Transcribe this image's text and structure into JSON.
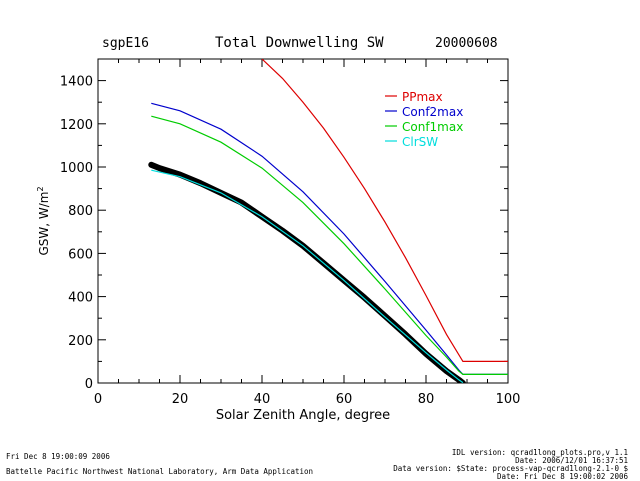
{
  "header": {
    "site": "sgpE16",
    "title": "Total Downwelling SW",
    "date": "20000608"
  },
  "footer": {
    "left_line1": "Fri Dec  8 19:00:09 2006",
    "left_line2": "Battelle Pacific Northwest National Laboratory, Arm Data Application",
    "right_line1": "IDL version: qcrad1long_plots.pro,v 1.1",
    "right_line2": "Date: 2006/12/01 16:37:51",
    "right_line3": "Data version: $State: process-vap-qcrad1long-2.1-0 $",
    "right_line4": "Date: Fri Dec  8 19:00:02 2006"
  },
  "chart_data": {
    "type": "line",
    "title": "Total Downwelling SW",
    "xlabel": "Solar Zenith Angle, degree",
    "ylabel": "GSW, W/m",
    "ylabel_superscript": "2",
    "xlim": [
      0,
      100
    ],
    "ylim": [
      0,
      1500
    ],
    "xticks": [
      0,
      20,
      40,
      60,
      80,
      100
    ],
    "yticks": [
      0,
      200,
      400,
      600,
      800,
      1000,
      1200,
      1400
    ],
    "legend_position": "top-right",
    "series": [
      {
        "name": "PPmax",
        "color": "#dd0000",
        "x": [
          40,
          45,
          50,
          55,
          60,
          65,
          70,
          75,
          80,
          85,
          89,
          90,
          100
        ],
        "y": [
          1500,
          1410,
          1300,
          1180,
          1045,
          900,
          745,
          580,
          405,
          225,
          100,
          100,
          100
        ]
      },
      {
        "name": "Conf2max",
        "color": "#0000cc",
        "x": [
          13,
          20,
          30,
          40,
          50,
          60,
          70,
          80,
          85,
          88,
          89,
          90,
          100
        ],
        "y": [
          1295,
          1260,
          1175,
          1050,
          885,
          690,
          470,
          245,
          130,
          60,
          40,
          40,
          40
        ]
      },
      {
        "name": "Conf1max",
        "color": "#00cc00",
        "x": [
          13,
          20,
          30,
          40,
          50,
          60,
          70,
          80,
          85,
          88,
          89,
          90,
          100
        ],
        "y": [
          1235,
          1200,
          1115,
          995,
          835,
          645,
          435,
          220,
          120,
          55,
          40,
          40,
          40
        ]
      },
      {
        "name": "ClrSW",
        "color": "#00dddd",
        "x": [
          13,
          20,
          30,
          40,
          50,
          60,
          70,
          80,
          85,
          88,
          89
        ],
        "y": [
          985,
          955,
          880,
          770,
          635,
          475,
          305,
          140,
          60,
          15,
          2
        ]
      },
      {
        "name": "",
        "color": "#000000",
        "style": "observations",
        "x": [
          13,
          15,
          20,
          25,
          30,
          35,
          40,
          45,
          50,
          55,
          60,
          65,
          70,
          75,
          80,
          85,
          88,
          89
        ],
        "y": [
          1010,
          995,
          965,
          925,
          880,
          835,
          770,
          705,
          635,
          555,
          475,
          395,
          310,
          225,
          135,
          55,
          15,
          0
        ]
      }
    ]
  }
}
